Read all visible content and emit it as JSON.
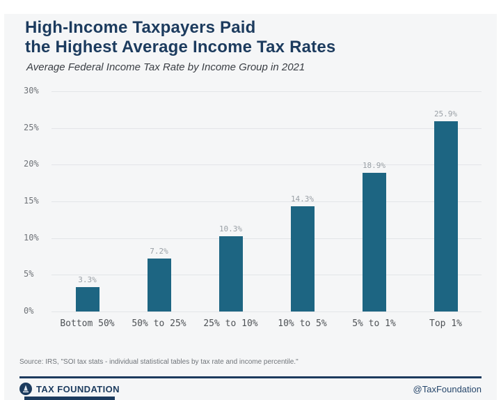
{
  "header": {
    "title_line1": "High-Income Taxpayers Paid",
    "title_line2": "the Highest Average Income Tax Rates",
    "subtitle": "Average Federal Income Tax Rate by Income Group in 2021"
  },
  "chart_data": {
    "type": "bar",
    "title": "High-Income Taxpayers Paid the Highest Average Income Tax Rates",
    "subtitle": "Average Federal Income Tax Rate by Income Group in 2021",
    "categories": [
      "Bottom 50%",
      "50% to 25%",
      "25% to 10%",
      "10% to 5%",
      "5% to 1%",
      "Top 1%"
    ],
    "values": [
      3.3,
      7.2,
      10.3,
      14.3,
      18.9,
      25.9
    ],
    "value_labels": [
      "3.3%",
      "7.2%",
      "10.3%",
      "14.3%",
      "18.9%",
      "25.9%"
    ],
    "xlabel": "",
    "ylabel": "",
    "ylim": [
      0,
      30
    ],
    "yticks": [
      0,
      5,
      10,
      15,
      20,
      25,
      30
    ],
    "ytick_labels": [
      "0%",
      "5%",
      "10%",
      "15%",
      "20%",
      "25%",
      "30%"
    ],
    "grid": true,
    "legend": false,
    "bar_color": "#1d6582"
  },
  "footer": {
    "source": "Source: IRS, \"SOI tax stats - individual statistical tables by tax rate and income percentile.\"",
    "brand": "TAX FOUNDATION",
    "handle": "@TaxFoundation"
  },
  "colors": {
    "navy": "#1c3b5e",
    "bar": "#1d6582",
    "background": "#f5f6f7",
    "gridline": "#e3e5e8"
  }
}
